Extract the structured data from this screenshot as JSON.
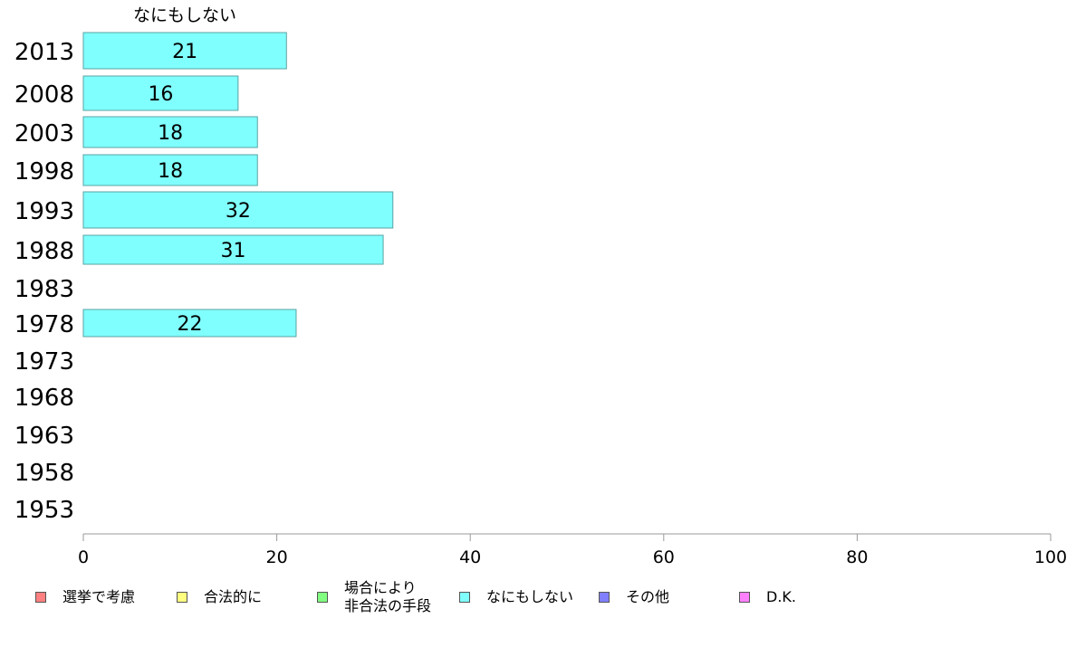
{
  "chart_data": {
    "type": "bar",
    "orientation": "horizontal",
    "header_label": "なにもしない",
    "categories": [
      "2013",
      "2008",
      "2003",
      "1998",
      "1993",
      "1988",
      "1983",
      "1978",
      "1973",
      "1968",
      "1963",
      "1958",
      "1953"
    ],
    "series": [
      {
        "name": "なにもしない",
        "color": "#80ffff",
        "values": [
          21,
          16,
          18,
          18,
          32,
          31,
          null,
          22,
          null,
          null,
          null,
          null,
          null
        ],
        "label_values": [
          "21",
          "16",
          "18",
          "18",
          "32",
          "31",
          "",
          "22",
          "",
          "",
          "",
          "",
          ""
        ]
      }
    ],
    "xlim": [
      0,
      100
    ],
    "xticks": [
      "0",
      "20",
      "40",
      "60",
      "80",
      "100"
    ],
    "grid": false,
    "legend_position": "bottom",
    "legend": [
      {
        "label": "選挙で考慮",
        "color": "#ff8080"
      },
      {
        "label": "合法的に",
        "color": "#ffff80"
      },
      {
        "label": "場合により\n非合法の手段",
        "color": "#80ff80"
      },
      {
        "label": "なにもしない",
        "color": "#80ffff"
      },
      {
        "label": "その他",
        "color": "#8080ff"
      },
      {
        "label": "D.K.",
        "color": "#ff80ff"
      }
    ]
  }
}
